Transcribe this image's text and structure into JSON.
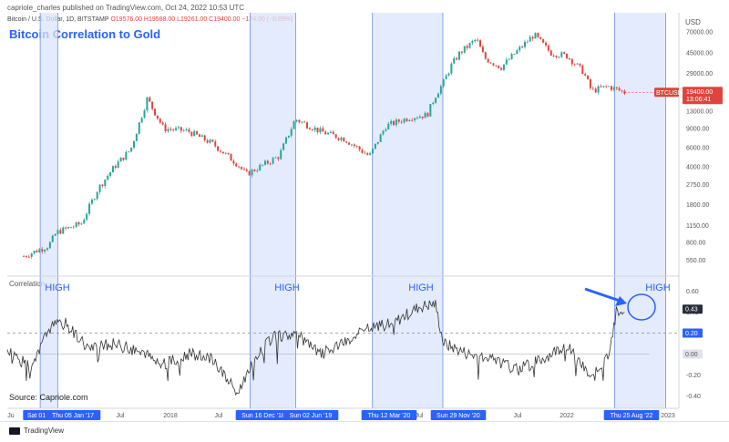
{
  "header": {
    "publisher_line": "capriole_charles published on TradingView.com, Oct 24, 2022 10:53 UTC",
    "symbol": "Bitcoin / U.S. Dollar, 1D, BITSTAMP",
    "ohlc": "O19576.00 H19588.00 L19261.00 C19400.00 −174.00 (−0.89%)",
    "title": "Bitcoin Correlation to Gold",
    "currency": "USD"
  },
  "price_axis": {
    "ticks": [
      "70000.00",
      "45000.00",
      "29000.00",
      "19400.00",
      "13000.00",
      "9000.00",
      "6000.00",
      "4000.00",
      "2750.00",
      "1800.00",
      "1150.00",
      "800.00",
      "550.00"
    ],
    "ticker_badge": "BTCUSD",
    "last_price": "19400.00",
    "countdown": "13:06:41"
  },
  "correlation_panel": {
    "label": "Correlation",
    "ticks": [
      "0.60",
      "0.40",
      "0.20",
      "0.00",
      "-0.20",
      "-0.40"
    ],
    "current_value": "0.43",
    "threshold_value": "0.20",
    "zero_value": "0.00",
    "high_labels": [
      "HIGH",
      "HIGH",
      "HIGH",
      "HIGH"
    ]
  },
  "time_axis": {
    "labels": [
      "Ju",
      "Sat 01",
      "Thu 05 Jan '17",
      "Jul",
      "2018",
      "Jul",
      "Sun 16 Dec '18",
      "Sun 02 Jun '19",
      "Thu 12 Mar '20",
      "Jul",
      "Sun 29 Nov '20",
      "Jul",
      "2022",
      "Thu 25 Aug '22",
      "2023"
    ]
  },
  "source": "Source: Capriole.com",
  "footer": {
    "brand": "TradingView"
  },
  "colors": {
    "accent": "#2962ff",
    "band": "#dbe4fb",
    "up_candle": "#26a69a",
    "down_candle": "#e0443c",
    "price_badge": "#e0443c"
  },
  "chart_data": [
    {
      "type": "line",
      "title": "Bitcoin Correlation to Gold",
      "series": [
        {
          "name": "BTCUSD",
          "x": [
            "2016-09",
            "2016-12",
            "2017-01",
            "2017-04",
            "2017-06",
            "2017-08",
            "2017-10",
            "2017-12",
            "2018-02",
            "2018-05",
            "2018-08",
            "2018-11",
            "2018-12",
            "2019-04",
            "2019-06",
            "2019-09",
            "2019-12",
            "2020-03",
            "2020-05",
            "2020-08",
            "2020-10",
            "2020-11",
            "2020-12",
            "2021-01",
            "2021-02",
            "2021-04",
            "2021-05",
            "2021-07",
            "2021-09",
            "2021-11",
            "2022-01",
            "2022-03",
            "2022-05",
            "2022-06",
            "2022-08",
            "2022-10"
          ],
          "values": [
            600,
            750,
            1000,
            1200,
            2500,
            4000,
            5800,
            17000,
            9000,
            8500,
            6500,
            4200,
            3400,
            5000,
            11000,
            8500,
            7200,
            5000,
            9500,
            11500,
            12000,
            18000,
            24000,
            35000,
            45000,
            60000,
            40000,
            33000,
            47000,
            66000,
            45000,
            42000,
            30000,
            20000,
            22000,
            19400
          ]
        }
      ],
      "ylim": [
        450,
        80000
      ],
      "scale": "log"
    },
    {
      "type": "line",
      "series": [
        {
          "name": "Correlation",
          "x": [
            "2016-07",
            "2016-10",
            "2016-12",
            "2017-02",
            "2017-05",
            "2017-08",
            "2017-11",
            "2018-02",
            "2018-05",
            "2018-08",
            "2018-11",
            "2018-12",
            "2019-03",
            "2019-06",
            "2019-09",
            "2019-12",
            "2020-03",
            "2020-06",
            "2020-09",
            "2020-11",
            "2020-12",
            "2021-03",
            "2021-06",
            "2021-09",
            "2021-12",
            "2022-03",
            "2022-06",
            "2022-08",
            "2022-09",
            "2022-10"
          ],
          "values": [
            0.05,
            -0.15,
            0.25,
            0.3,
            0.05,
            0.1,
            0.02,
            -0.1,
            0.0,
            -0.05,
            -0.38,
            -0.2,
            0.15,
            0.2,
            0.0,
            0.1,
            0.25,
            0.3,
            0.45,
            0.48,
            0.1,
            0.0,
            -0.05,
            -0.15,
            -0.05,
            0.1,
            -0.25,
            0.0,
            0.4,
            0.43
          ]
        }
      ],
      "ylim": [
        -0.45,
        0.65
      ]
    }
  ]
}
